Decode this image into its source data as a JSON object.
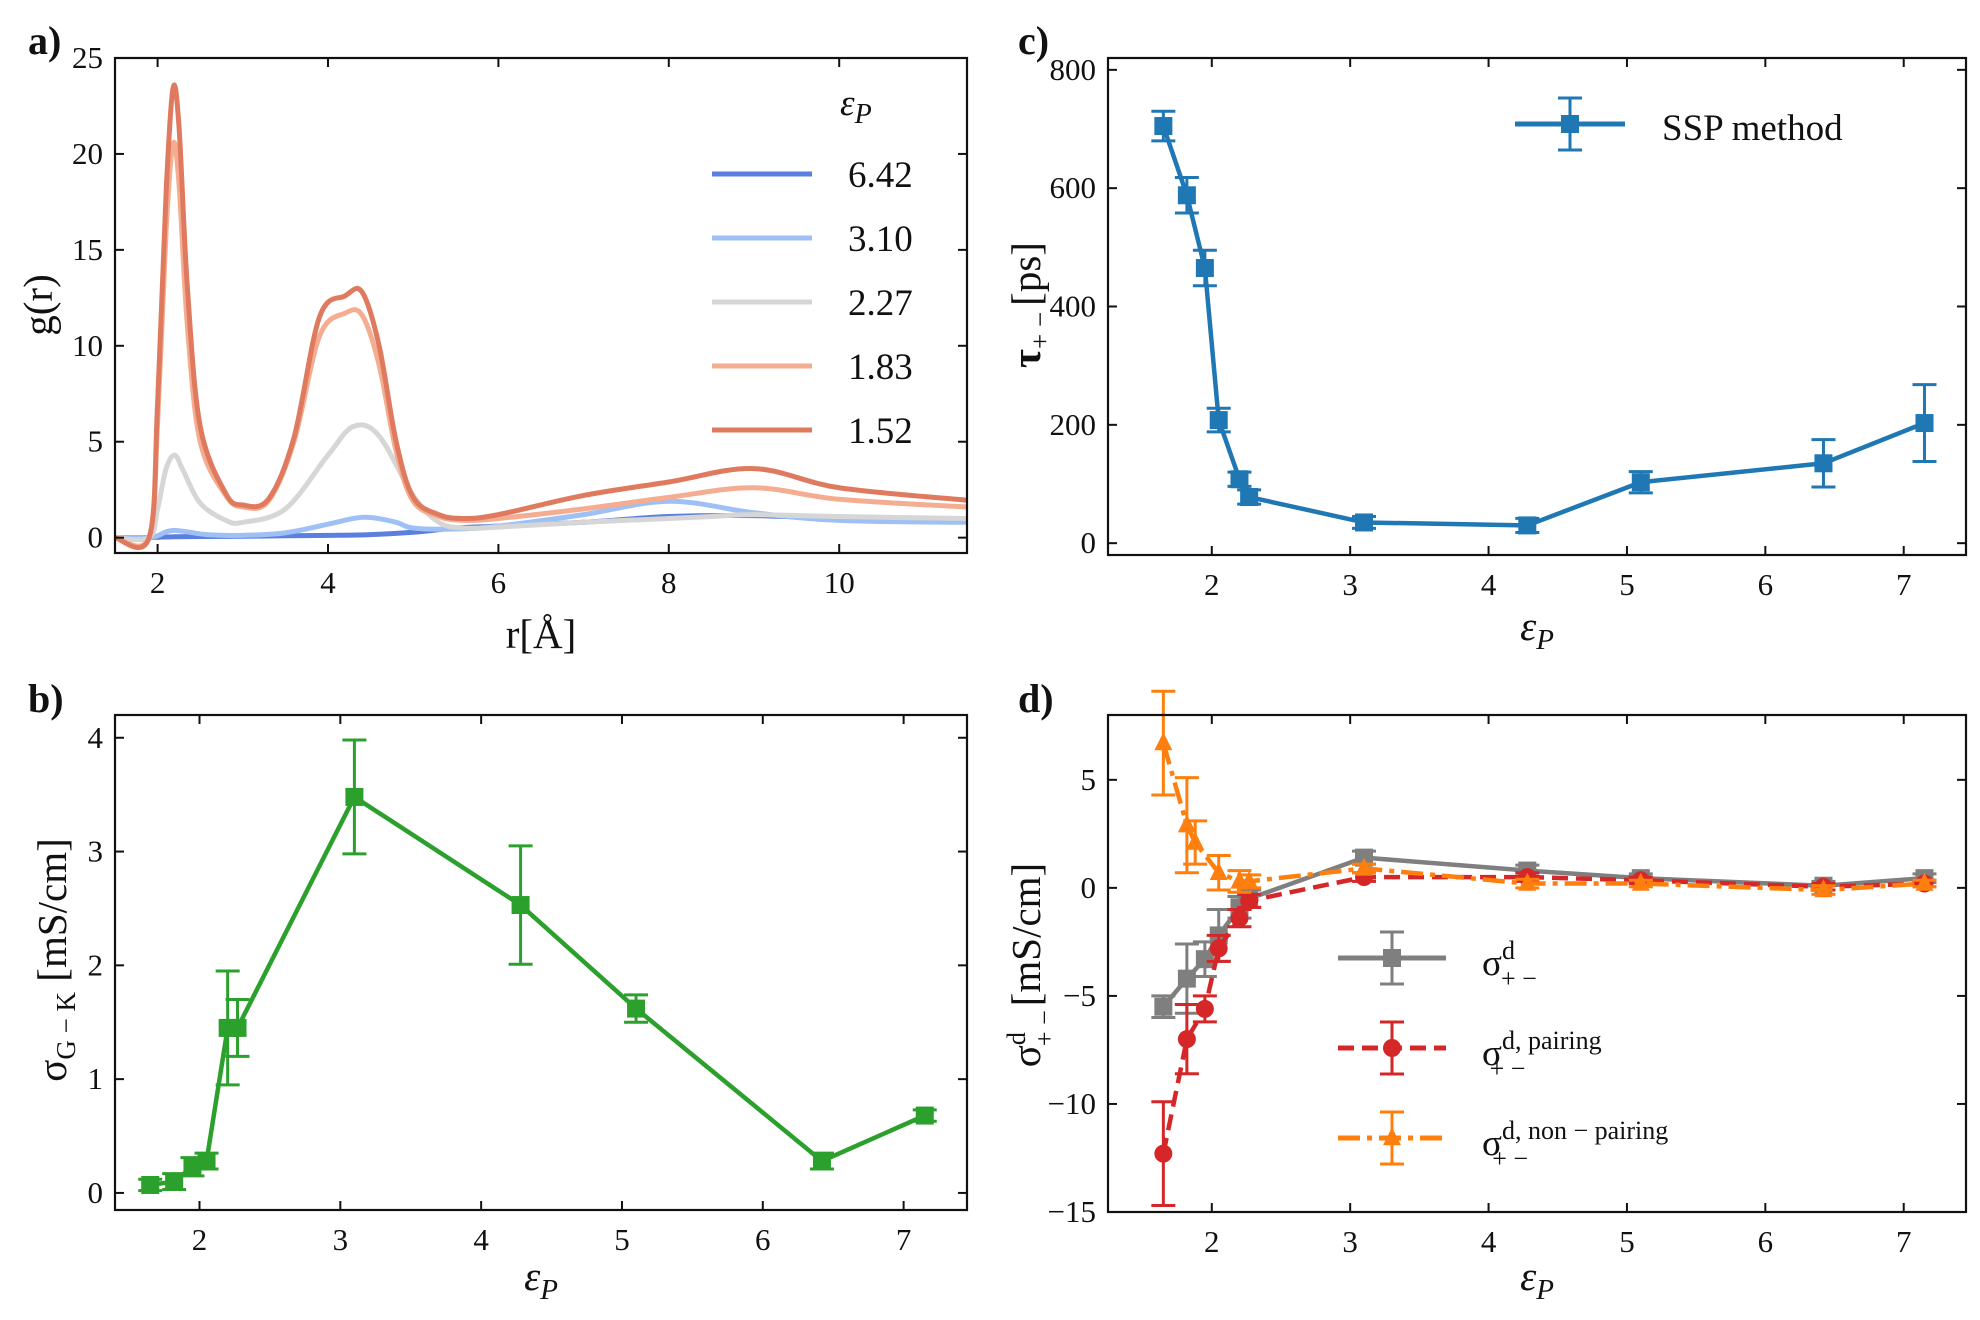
{
  "panels": {
    "a": {
      "label": "a)",
      "xlabel": "r[Å]",
      "ylabel": "g(r)",
      "legend_title": "εP",
      "xticks": [
        "2",
        "4",
        "6",
        "8",
        "10"
      ],
      "yticks": [
        "0",
        "5",
        "10",
        "15",
        "20",
        "25"
      ]
    },
    "b": {
      "label": "b)",
      "xlabel": "εP",
      "ylabel_main": "σ",
      "ylabel_sub": "G − K",
      "ylabel_unit": " [mS/cm]",
      "xticks": [
        "2",
        "3",
        "4",
        "5",
        "6",
        "7"
      ],
      "yticks": [
        "0",
        "1",
        "2",
        "3",
        "4"
      ]
    },
    "c": {
      "label": "c)",
      "xlabel": "εP",
      "ylabel_main": "τ",
      "ylabel_sub": "+ −",
      "ylabel_unit": "[ps]",
      "xticks": [
        "2",
        "3",
        "4",
        "5",
        "6",
        "7"
      ],
      "yticks": [
        "0",
        "200",
        "400",
        "600",
        "800"
      ]
    },
    "d": {
      "label": "d)",
      "xlabel": "εP",
      "ylabel_main": "σ",
      "ylabel_sup": "d",
      "ylabel_sub": "+ −",
      "ylabel_unit": "[mS/cm]",
      "xticks": [
        "2",
        "3",
        "4",
        "5",
        "6",
        "7"
      ],
      "yticks": [
        "−15",
        "−10",
        "−5",
        "0",
        "5"
      ]
    }
  },
  "chart_data": [
    {
      "panel": "a",
      "type": "line",
      "xlim": [
        1.5,
        11.5
      ],
      "ylim": [
        -0.8,
        25
      ],
      "legend_placement": "right",
      "series": [
        {
          "name": "6.42",
          "color": "#5b7fe0",
          "x": [
            1.5,
            1.9,
            2.0,
            2.2,
            2.5,
            3,
            3.5,
            4,
            4.5,
            5,
            5.5,
            6,
            7,
            8,
            9,
            10,
            11.5
          ],
          "y": [
            0,
            0,
            0.02,
            0.05,
            0.06,
            0.07,
            0.1,
            0.12,
            0.16,
            0.28,
            0.5,
            0.6,
            0.8,
            1.1,
            1.15,
            1.0,
            0.9
          ]
        },
        {
          "name": "3.10",
          "color": "#9ec0f5",
          "x": [
            1.5,
            1.9,
            2.0,
            2.1,
            2.2,
            2.35,
            2.6,
            3,
            3.5,
            4,
            4.3,
            4.5,
            4.8,
            5,
            5.5,
            6,
            7,
            8,
            9,
            10,
            11.5
          ],
          "y": [
            0,
            0,
            0.1,
            0.3,
            0.38,
            0.3,
            0.15,
            0.12,
            0.25,
            0.7,
            1.0,
            1.05,
            0.8,
            0.5,
            0.45,
            0.6,
            1.2,
            1.9,
            1.3,
            0.9,
            0.8
          ]
        },
        {
          "name": "2.27",
          "color": "#d6d6d6",
          "x": [
            1.5,
            1.9,
            2.0,
            2.1,
            2.2,
            2.3,
            2.5,
            2.8,
            3,
            3.5,
            4,
            4.3,
            4.6,
            5,
            5.3,
            5.6,
            6,
            7,
            8,
            8.5,
            9,
            10,
            11.5
          ],
          "y": [
            0,
            0,
            1.5,
            3.6,
            4.3,
            3.5,
            1.8,
            0.9,
            0.8,
            1.5,
            4.3,
            5.8,
            5.3,
            2.2,
            0.8,
            0.5,
            0.55,
            0.8,
            1.0,
            1.1,
            1.2,
            1.1,
            1.0
          ]
        },
        {
          "name": "1.83",
          "color": "#f4ad90",
          "x": [
            1.5,
            1.9,
            2.0,
            2.1,
            2.18,
            2.25,
            2.35,
            2.5,
            2.8,
            3,
            3.3,
            3.6,
            3.9,
            4.2,
            4.4,
            4.6,
            4.8,
            5,
            5.3,
            5.6,
            6,
            7,
            8,
            9,
            10,
            11.5
          ],
          "y": [
            0,
            0,
            6,
            16,
            20.5,
            18.5,
            11,
            5,
            2.2,
            1.6,
            1.9,
            5,
            10.5,
            11.7,
            11.6,
            9,
            4.5,
            1.9,
            1.1,
            0.9,
            1.0,
            1.5,
            2.1,
            2.6,
            2.0,
            1.6
          ]
        },
        {
          "name": "1.52",
          "color": "#e07a5f",
          "x": [
            1.5,
            1.9,
            2.0,
            2.1,
            2.18,
            2.25,
            2.35,
            2.5,
            2.8,
            3,
            3.3,
            3.6,
            3.9,
            4.2,
            4.4,
            4.6,
            4.8,
            5,
            5.3,
            5.6,
            6,
            7,
            8,
            9,
            10,
            11.5
          ],
          "y": [
            0,
            0,
            7,
            18,
            23.4,
            21.5,
            13,
            5.8,
            2.3,
            1.7,
            2.0,
            5.2,
            11.5,
            12.6,
            12.8,
            10,
            5,
            2.1,
            1.2,
            1.0,
            1.2,
            2.2,
            2.9,
            3.6,
            2.6,
            1.95
          ]
        }
      ]
    },
    {
      "panel": "b",
      "type": "line",
      "xlim": [
        1.4,
        7.45
      ],
      "ylim": [
        -0.15,
        4.2
      ],
      "series": [
        {
          "name": "",
          "color": "#2ca02c",
          "x": [
            1.65,
            1.82,
            1.95,
            2.05,
            2.2,
            2.27,
            3.1,
            4.28,
            5.1,
            6.42,
            7.15
          ],
          "y": [
            0.07,
            0.1,
            0.23,
            0.28,
            1.45,
            1.45,
            3.48,
            2.53,
            1.62,
            0.28,
            0.68
          ],
          "err": [
            0.05,
            0.07,
            0.08,
            0.07,
            0.5,
            0.25,
            0.5,
            0.52,
            0.12,
            0.07,
            0.05
          ]
        }
      ]
    },
    {
      "panel": "c",
      "type": "line",
      "xlim": [
        1.25,
        7.45
      ],
      "ylim": [
        -20,
        820
      ],
      "legend_placement": "top-right",
      "series": [
        {
          "name": "SSP method",
          "color": "#1f77b4",
          "x": [
            1.65,
            1.82,
            1.95,
            2.05,
            2.2,
            2.27,
            3.1,
            4.28,
            5.1,
            6.42,
            7.15
          ],
          "y": [
            705,
            588,
            465,
            208,
            108,
            78,
            35,
            30,
            103,
            135,
            203
          ],
          "err": [
            25,
            30,
            30,
            20,
            12,
            12,
            10,
            12,
            18,
            40,
            65
          ]
        }
      ]
    },
    {
      "panel": "d",
      "type": "line",
      "xlim": [
        1.25,
        7.45
      ],
      "ylim": [
        -15,
        8
      ],
      "legend_placement": "center-right",
      "series": [
        {
          "name": "σd+−",
          "color": "#7f7f7f",
          "x": [
            1.65,
            1.82,
            1.95,
            2.05,
            2.2,
            2.27,
            3.1,
            4.28,
            5.1,
            6.42,
            7.15
          ],
          "y": [
            -5.5,
            -4.2,
            -3.3,
            -2.2,
            -0.9,
            -0.5,
            1.4,
            0.8,
            0.45,
            0.1,
            0.45
          ],
          "err": [
            0.5,
            1.6,
            0.8,
            1.2,
            0.5,
            0.4,
            0.3,
            0.25,
            0.2,
            0.2,
            0.2
          ]
        },
        {
          "name": "σd, pairing+−",
          "color": "#d62728",
          "x": [
            1.65,
            1.82,
            1.95,
            2.05,
            2.2,
            2.27,
            3.1,
            4.28,
            5.1,
            6.42,
            7.15
          ],
          "y": [
            -12.3,
            -7.0,
            -5.6,
            -2.8,
            -1.4,
            -0.6,
            0.5,
            0.5,
            0.35,
            0.05,
            0.2
          ],
          "err": [
            2.4,
            1.6,
            0.6,
            0.6,
            0.4,
            0.3,
            0.2,
            0.2,
            0.15,
            0.15,
            0.15
          ]
        },
        {
          "name": "σd, non−pairing+−",
          "color": "#ff7f0e",
          "x": [
            1.65,
            1.82,
            1.88,
            2.05,
            2.2,
            2.27,
            3.1,
            4.28,
            5.1,
            6.42,
            7.15
          ],
          "y": [
            6.7,
            2.9,
            2.1,
            0.7,
            0.3,
            0.3,
            0.9,
            0.2,
            0.2,
            -0.1,
            0.2
          ],
          "err": [
            2.4,
            2.2,
            1.0,
            0.8,
            0.5,
            0.3,
            0.2,
            0.2,
            0.15,
            0.2,
            0.15
          ]
        }
      ]
    }
  ]
}
